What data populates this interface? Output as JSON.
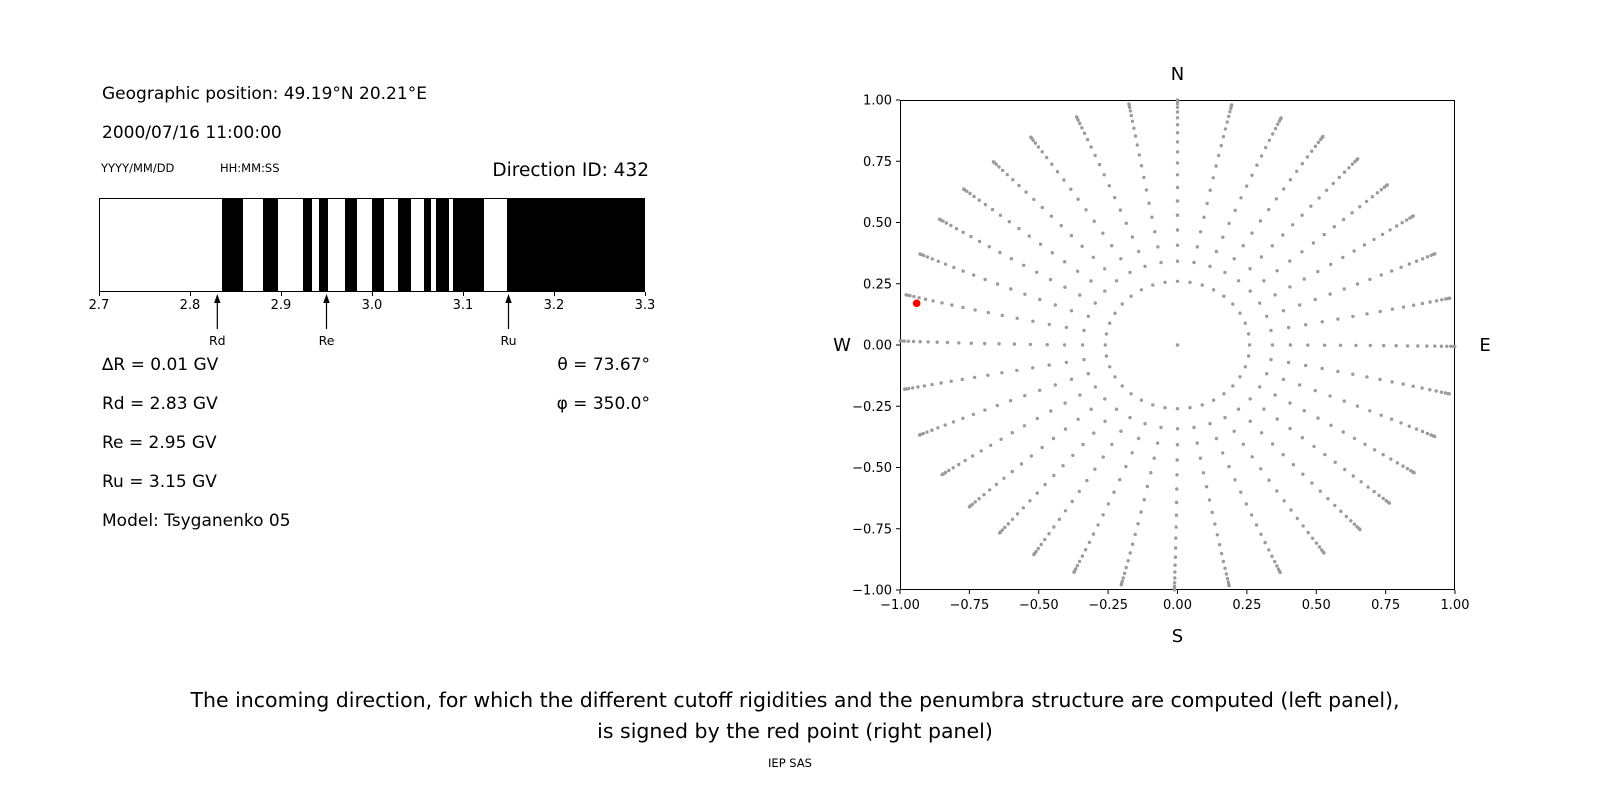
{
  "left_panel": {
    "geographic_position": "Geographic position: 49.19°N 20.21°E",
    "datetime": "2000/07/16 11:00:00",
    "date_format_label": "YYYY/MM/DD",
    "time_format_label": "HH:MM:SS",
    "direction_id": "Direction ID: 432",
    "params": [
      "∆R = 0.01 GV",
      "Rd = 2.83 GV",
      "Re = 2.95 GV",
      "Ru = 3.15 GV",
      "Model: Tsyganenko 05"
    ],
    "theta": "θ = 73.67°",
    "phi": "φ = 350.0°"
  },
  "caption": {
    "line1": "The incoming direction, for which the different cutoff rigidities and the penumbra structure are computed (left panel),",
    "line2": "is signed by the red point (right panel)",
    "credit": "IEP SAS"
  },
  "chart_data": [
    {
      "type": "bar",
      "subtype": "penumbra_barcode",
      "title": "",
      "xlabel": "",
      "ylabel": "",
      "xlim": [
        2.7,
        3.3
      ],
      "xticks": [
        "2.7",
        "2.8",
        "2.9",
        "3.0",
        "3.1",
        "3.2",
        "3.3"
      ],
      "bar_color": "#000000",
      "background_color": "#ffffff",
      "black_segments_gv": [
        [
          2.835,
          2.858
        ],
        [
          2.88,
          2.896
        ],
        [
          2.924,
          2.934
        ],
        [
          2.941,
          2.952
        ],
        [
          2.97,
          2.983
        ],
        [
          3.0,
          3.013
        ],
        [
          3.029,
          3.043
        ],
        [
          3.057,
          3.065
        ],
        [
          3.071,
          3.085
        ],
        [
          3.089,
          3.123
        ],
        [
          3.149,
          3.3
        ]
      ],
      "markers": [
        {
          "label": "Rd",
          "x": 2.83
        },
        {
          "label": "Re",
          "x": 2.95
        },
        {
          "label": "Ru",
          "x": 3.15
        }
      ]
    },
    {
      "type": "scatter",
      "title": "",
      "xlim": [
        -1.0,
        1.0
      ],
      "ylim": [
        -1.0,
        1.0
      ],
      "xticks": [
        "−1.00",
        "−0.75",
        "−0.50",
        "−0.25",
        "0.00",
        "0.25",
        "0.50",
        "0.75",
        "1.00"
      ],
      "yticks": [
        "1.00",
        "0.75",
        "0.50",
        "0.25",
        "0.00",
        "−0.25",
        "−0.50",
        "−0.75",
        "−1.00"
      ],
      "grid": false,
      "compass_labels": {
        "top": "N",
        "bottom": "S",
        "left": "W",
        "right": "E"
      },
      "dot_color": "#9b9b9b",
      "red_point": {
        "x": -0.94,
        "y": 0.17,
        "color": "#ff0000"
      },
      "dot_pattern": {
        "description": "radial spokes of gray dots (asymptotic direction grid): one dot ring near r=0.26, spokes every 10° in azimuth with dots at r=sin(zenith) for zenith 20°–88°, center dot at origin",
        "azimuth_step_deg": 10,
        "zenith_start_deg": 20,
        "zenith_end_deg": 88,
        "zenith_step_deg": 4,
        "radius_formula": "sin(zenith)",
        "inner_ring_radius": 0.26,
        "center_dot": true
      }
    }
  ]
}
